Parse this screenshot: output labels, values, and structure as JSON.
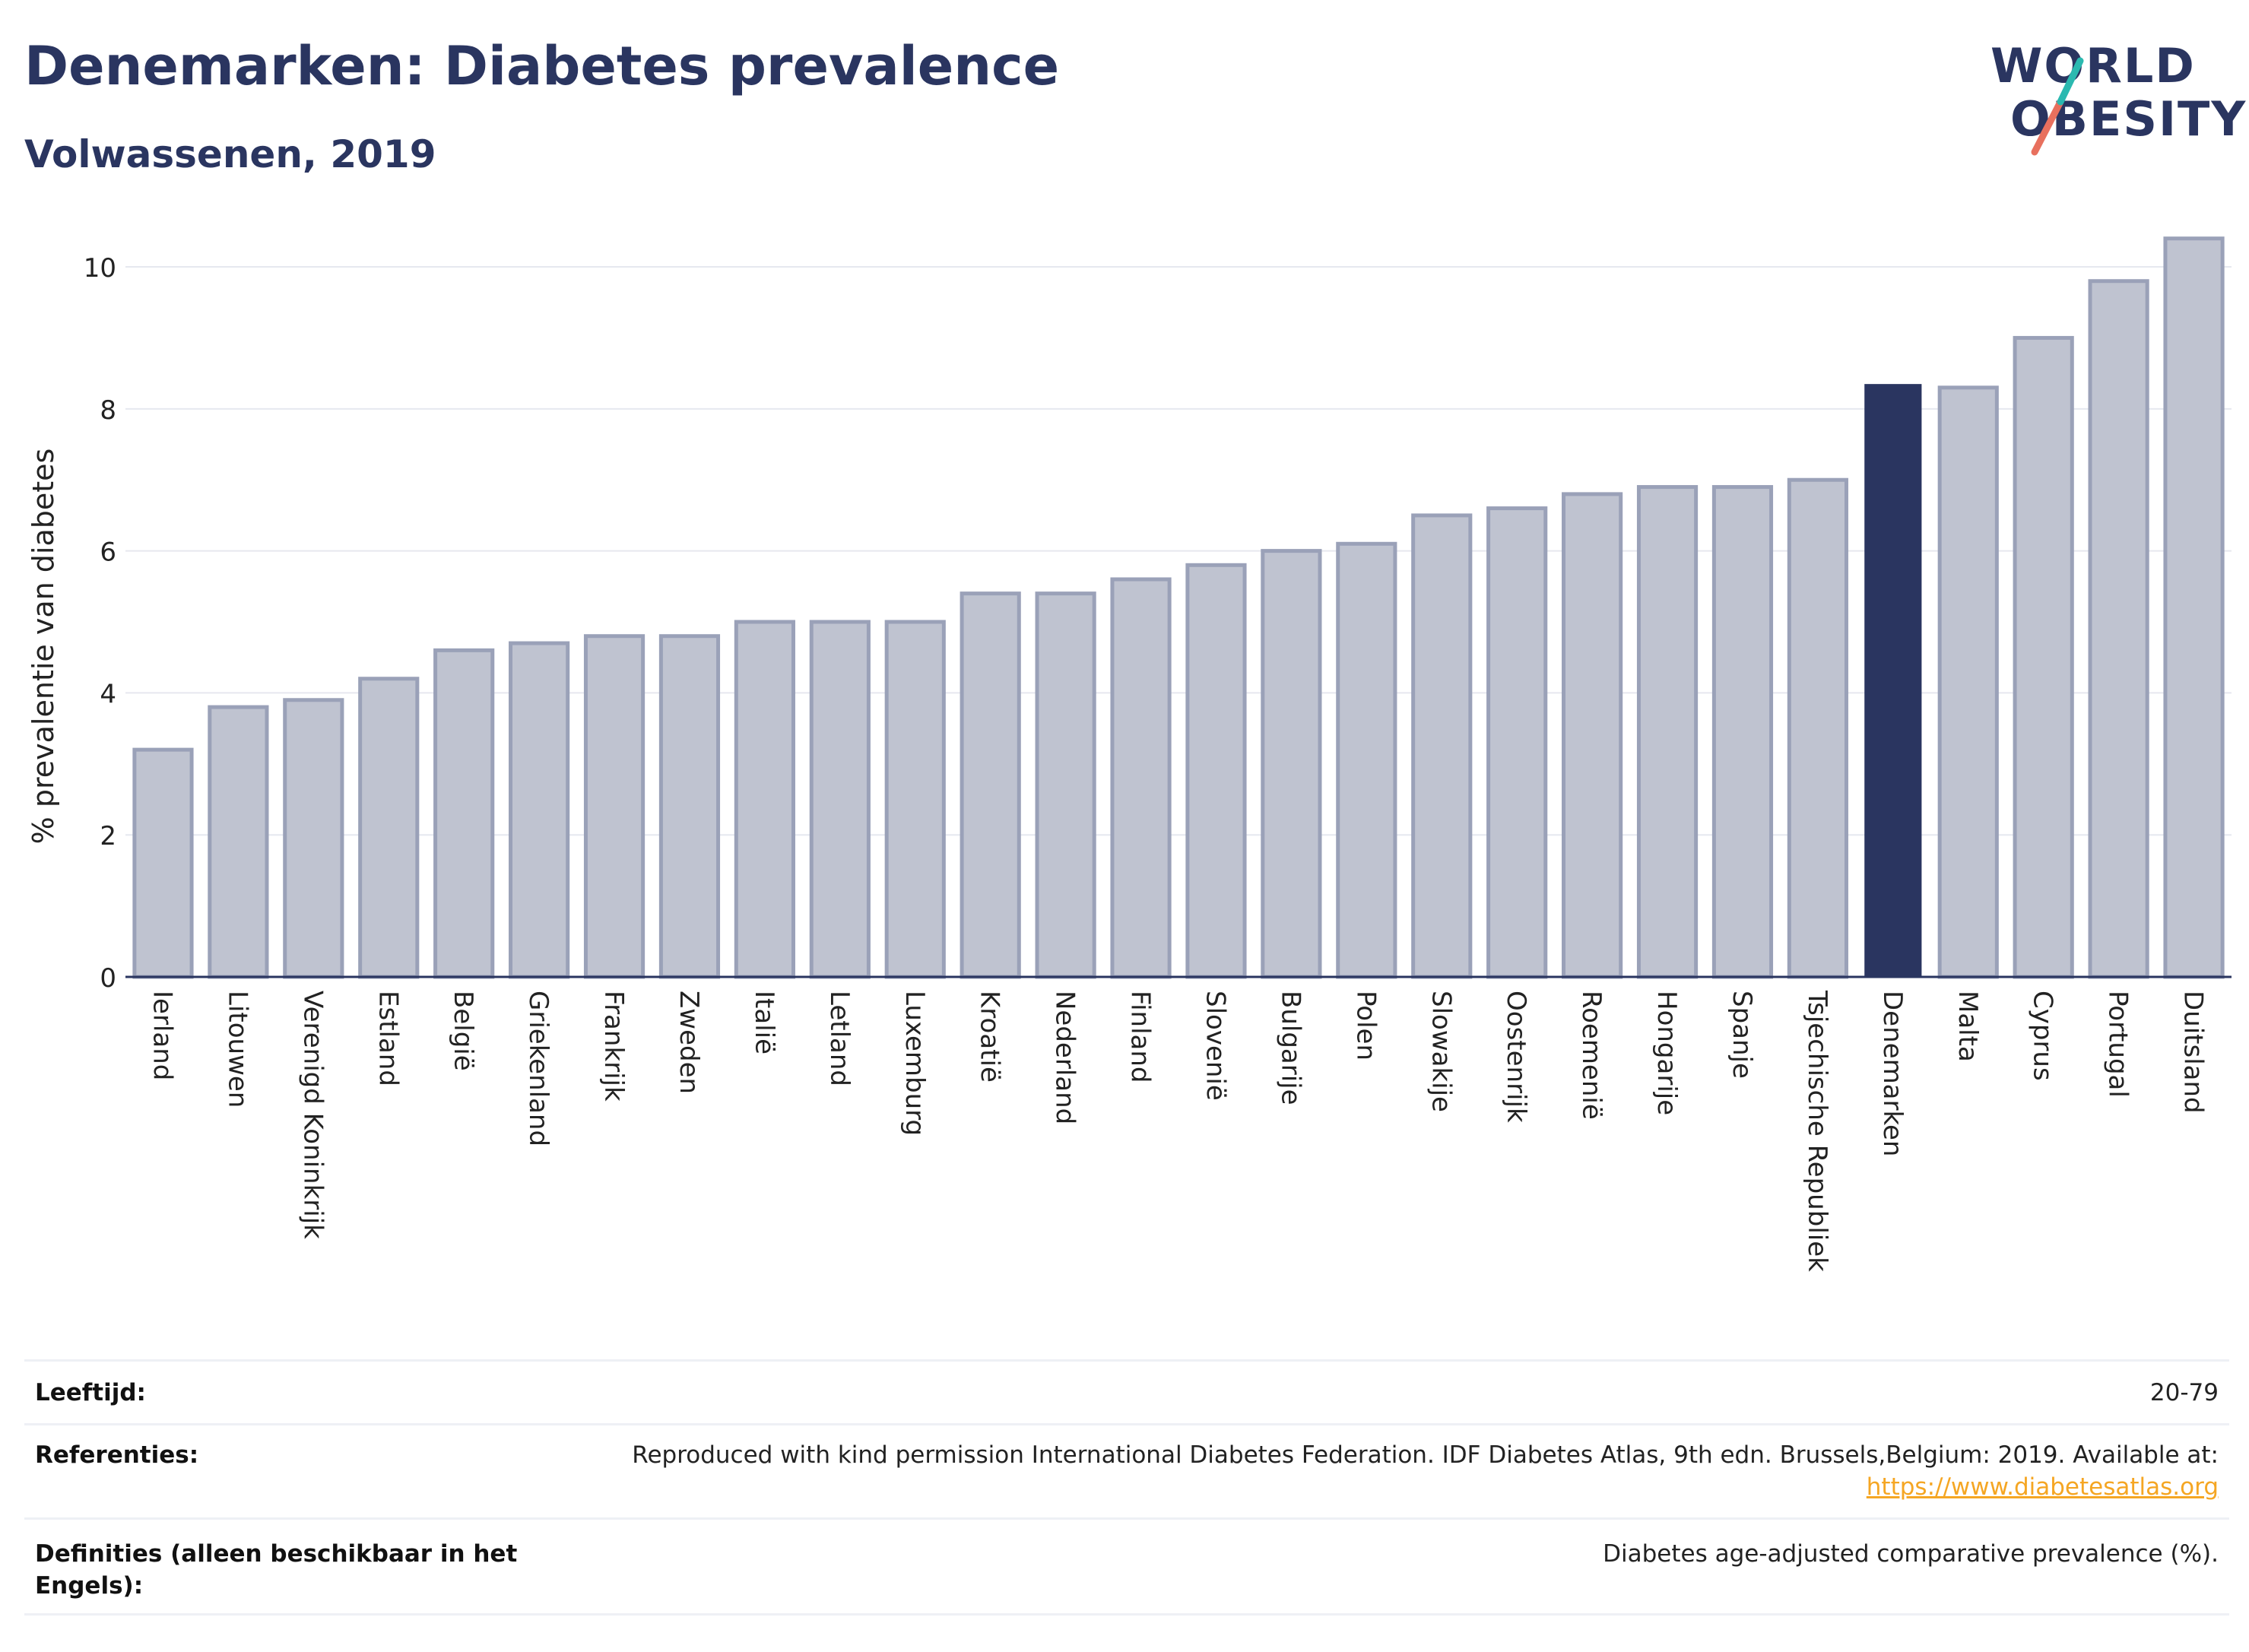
{
  "header": {
    "title": "Denemarken: Diabetes prevalence",
    "subtitle": "Volwassenen, 2019"
  },
  "logo": {
    "line1": "WORLD",
    "line2": "OBESITY",
    "text": "WORLD OBESITY"
  },
  "colors": {
    "highlight": "#2a3560",
    "bar_fill": "#bfc3d0",
    "bar_edge": "#9aa1b8",
    "logo_teal": "#2bb9b0",
    "logo_coral": "#e8705e",
    "link": "#f5a623"
  },
  "chart_data": {
    "type": "bar",
    "ylabel": "% prevalentie van diabetes",
    "xlabel": "",
    "ylim": [
      0,
      10.6
    ],
    "yticks": [
      0,
      2,
      4,
      6,
      8,
      10
    ],
    "grid": true,
    "highlight": "Denemarken",
    "categories": [
      "Ierland",
      "Litouwen",
      "Verenigd Koninkrijk",
      "Estland",
      "België",
      "Griekenland",
      "Frankrijk",
      "Zweden",
      "Italië",
      "Letland",
      "Luxemburg",
      "Kroatië",
      "Nederland",
      "Finland",
      "Slovenië",
      "Bulgarije",
      "Polen",
      "Slowakije",
      "Oostenrijk",
      "Roemenië",
      "Hongarije",
      "Spanje",
      "Tsjechische Republiek",
      "Denemarken",
      "Malta",
      "Cyprus",
      "Portugal",
      "Duitsland"
    ],
    "values": [
      3.2,
      3.8,
      3.9,
      4.2,
      4.6,
      4.7,
      4.8,
      4.8,
      5.0,
      5.0,
      5.0,
      5.4,
      5.4,
      5.6,
      5.8,
      6.0,
      6.1,
      6.5,
      6.6,
      6.8,
      6.9,
      6.9,
      7.0,
      8.35,
      8.3,
      9.0,
      9.8,
      10.4
    ]
  },
  "footer": {
    "age_label": "Leeftijd:",
    "age_value": "20-79",
    "ref_label": "Referenties:",
    "ref_text": "Reproduced with kind permission International Diabetes Federation. IDF Diabetes Atlas, 9th edn. Brussels,Belgium: 2019. Available at:",
    "ref_link": "https://www.diabetesatlas.org",
    "def_label_line1": "Definities (alleen beschikbaar in het",
    "def_label_line2": "Engels):",
    "def_value": "Diabetes age-adjusted comparative prevalence (%)."
  }
}
